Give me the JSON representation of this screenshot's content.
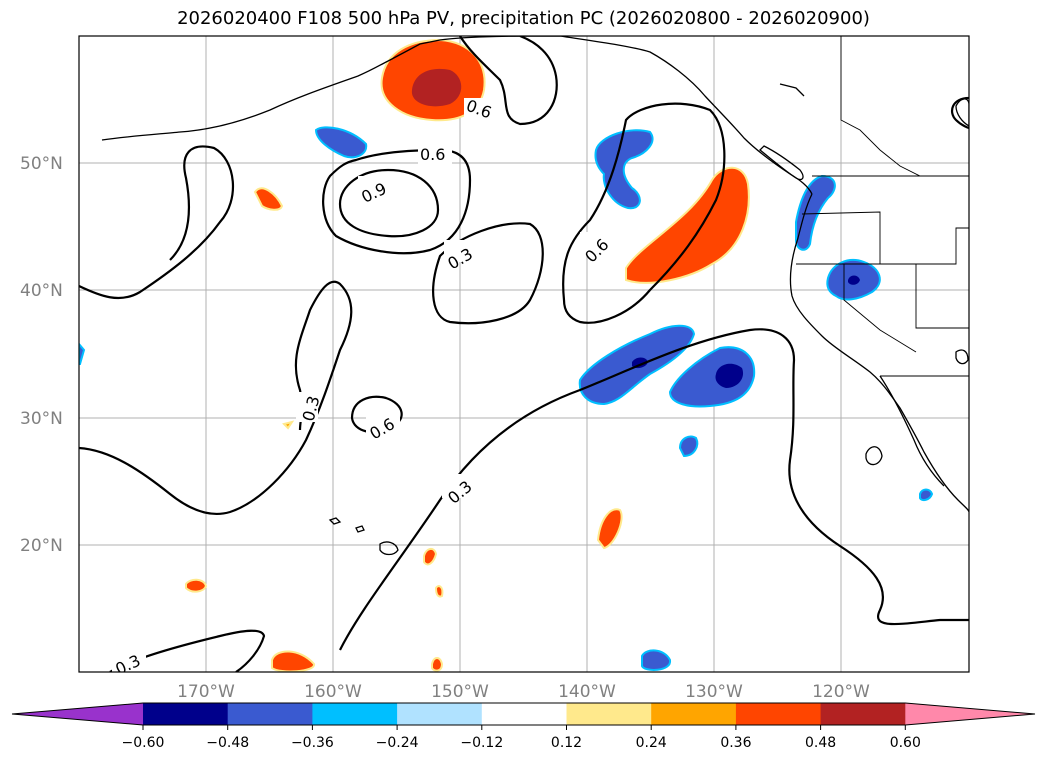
{
  "title": "2026020400 F108 500 hPa PV, precipitation PC (2026020800 - 2026020900)",
  "chart_data": {
    "type": "heatmap",
    "map_extent": {
      "lon": [
        -180,
        -110
      ],
      "lat": [
        10,
        60
      ]
    },
    "grid": true,
    "lon_ticks": [
      "170°W",
      "160°W",
      "150°W",
      "140°W",
      "130°W",
      "120°W"
    ],
    "lat_ticks": [
      "50°N",
      "40°N",
      "30°N",
      "20°N"
    ],
    "contour_labels": [
      "0.6",
      "0.6",
      "0.9",
      "0.3",
      "0.6",
      "0.3",
      "0.6",
      "0.3",
      "0.3"
    ],
    "colorbar": {
      "ticks": [
        "−0.60",
        "−0.48",
        "−0.36",
        "−0.24",
        "−0.12",
        "0.12",
        "0.24",
        "0.36",
        "0.48",
        "0.60"
      ],
      "colors": [
        "#9932cc",
        "#00008b",
        "#3a5ad0",
        "#00bfff",
        "#b0e2ff",
        "#ffffff",
        "#ffe98c",
        "#ffa500",
        "#ff4500",
        "#b22222",
        "#ff88aa"
      ]
    }
  }
}
